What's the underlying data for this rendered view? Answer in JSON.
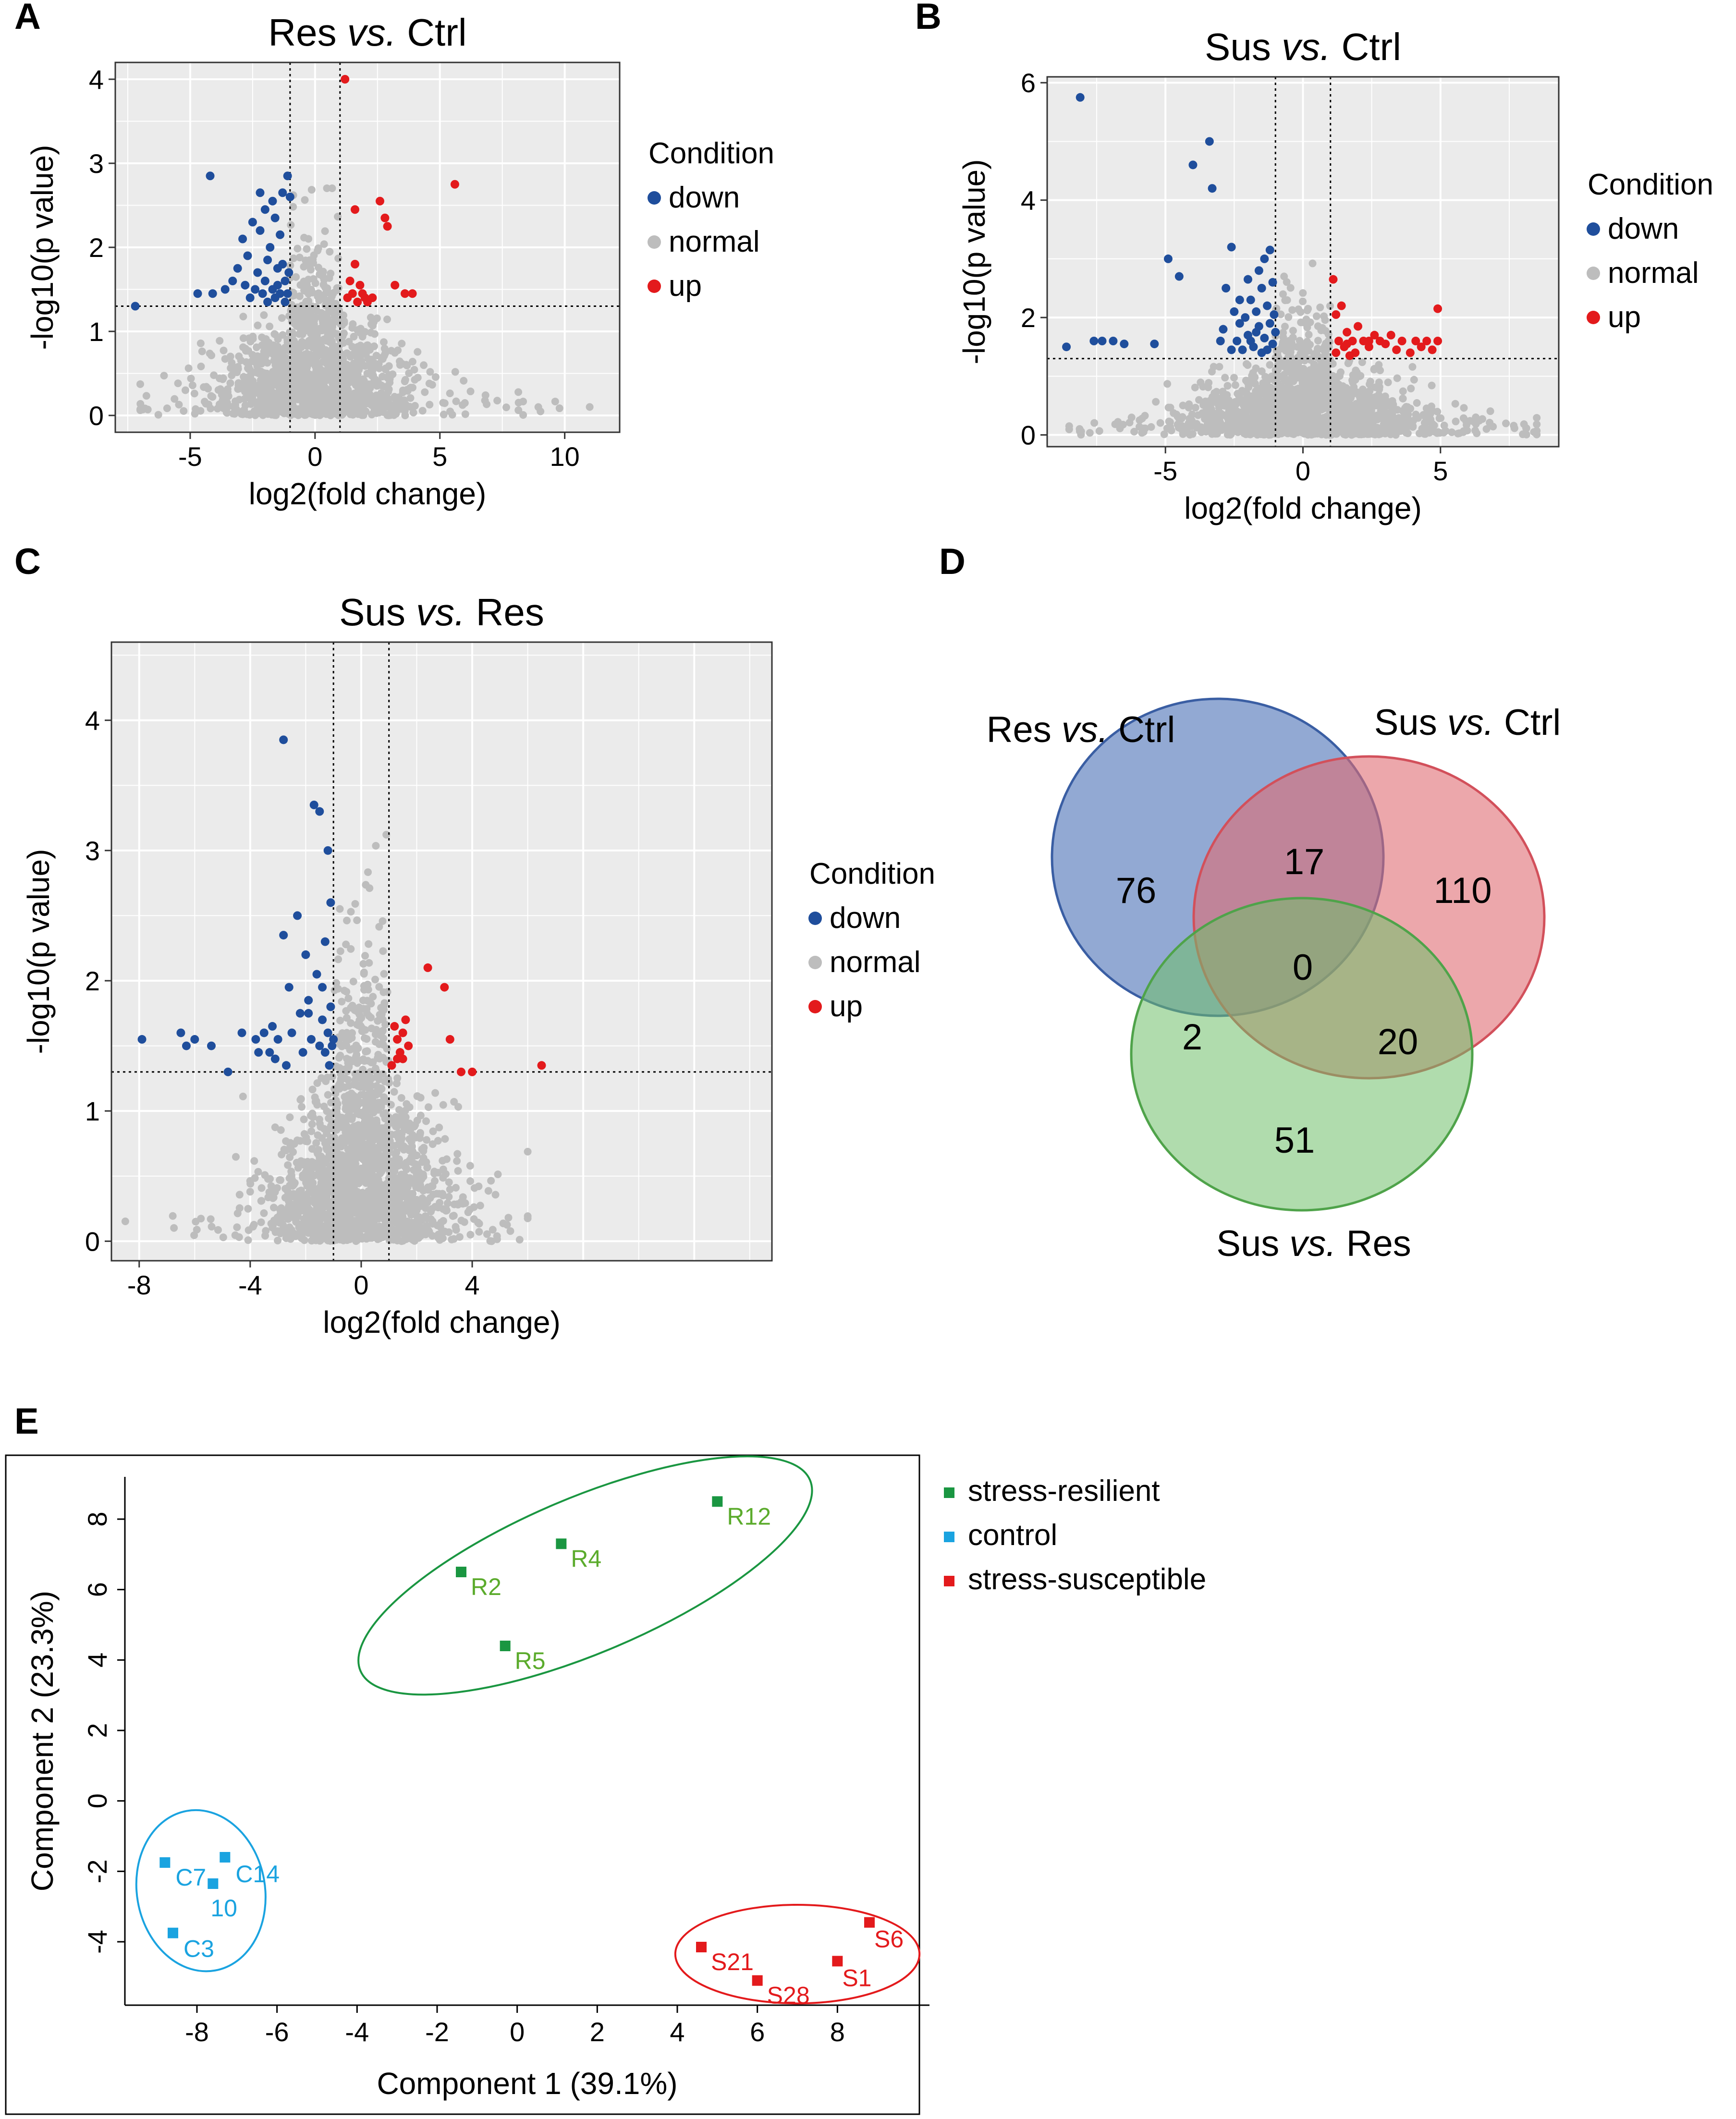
{
  "colors": {
    "down": "#1f4e9c",
    "normal": "#bdbdbd",
    "up": "#e31a1c",
    "panel_bg": "#ebebeb",
    "grid": "#ffffff",
    "venn_a": "#4a6fb5",
    "venn_b": "#e06d73",
    "venn_c": "#6fc06a",
    "resilient": "#1a9641",
    "resilient_label": "#5bab2c",
    "control": "#1aa3e0",
    "susceptible": "#e31a1c"
  },
  "panels": {
    "A": {
      "label": "A"
    },
    "B": {
      "label": "B"
    },
    "C": {
      "label": "C"
    },
    "D": {
      "label": "D"
    },
    "E": {
      "label": "E"
    }
  },
  "legend_condition": {
    "title": "Condition",
    "items": [
      "down",
      "normal",
      "up"
    ]
  },
  "chart_data": [
    {
      "id": "A",
      "type": "scatter",
      "title_pre": "Res ",
      "title_vs": "vs.",
      "title_post": " Ctrl",
      "xlabel": "log2(fold change)",
      "ylabel": "-log10(p value)",
      "xlim": [
        -8,
        12.2
      ],
      "ylim": [
        -0.2,
        4.2
      ],
      "xticks": [
        -5,
        0,
        5,
        10
      ],
      "yticks": [
        0,
        1,
        2,
        3,
        4
      ],
      "vlines": [
        -1,
        1
      ],
      "hline": 1.3,
      "down": [
        [
          -7.2,
          1.3
        ],
        [
          -4.7,
          1.45
        ],
        [
          -4.2,
          2.85
        ],
        [
          -4.1,
          1.45
        ],
        [
          -3.6,
          1.5
        ],
        [
          -3.3,
          1.6
        ],
        [
          -3.1,
          1.75
        ],
        [
          -2.9,
          2.1
        ],
        [
          -2.8,
          1.55
        ],
        [
          -2.7,
          1.9
        ],
        [
          -2.6,
          1.4
        ],
        [
          -2.5,
          2.3
        ],
        [
          -2.4,
          1.5
        ],
        [
          -2.3,
          1.7
        ],
        [
          -2.2,
          2.2
        ],
        [
          -2.2,
          2.65
        ],
        [
          -2.1,
          1.45
        ],
        [
          -2.0,
          1.6
        ],
        [
          -2.0,
          2.45
        ],
        [
          -1.9,
          1.35
        ],
        [
          -1.9,
          1.85
        ],
        [
          -1.8,
          2.0
        ],
        [
          -1.7,
          2.55
        ],
        [
          -1.7,
          1.5
        ],
        [
          -1.6,
          1.4
        ],
        [
          -1.6,
          2.35
        ],
        [
          -1.5,
          1.75
        ],
        [
          -1.5,
          1.55
        ],
        [
          -1.4,
          1.45
        ],
        [
          -1.4,
          2.15
        ],
        [
          -1.3,
          2.65
        ],
        [
          -1.3,
          1.8
        ],
        [
          -1.2,
          1.35
        ],
        [
          -1.2,
          1.6
        ],
        [
          -1.1,
          2.85
        ],
        [
          -1.1,
          1.45
        ],
        [
          -1.05,
          1.7
        ],
        [
          -1.0,
          2.6
        ]
      ],
      "up": [
        [
          1.2,
          4.0
        ],
        [
          1.3,
          1.4
        ],
        [
          1.4,
          1.6
        ],
        [
          1.5,
          1.45
        ],
        [
          1.6,
          2.45
        ],
        [
          1.6,
          1.8
        ],
        [
          1.7,
          1.35
        ],
        [
          1.8,
          1.55
        ],
        [
          1.9,
          1.45
        ],
        [
          2.0,
          1.4
        ],
        [
          2.1,
          1.35
        ],
        [
          2.3,
          1.4
        ],
        [
          2.6,
          2.55
        ],
        [
          2.8,
          2.35
        ],
        [
          2.9,
          2.25
        ],
        [
          3.2,
          1.55
        ],
        [
          3.6,
          1.45
        ],
        [
          3.9,
          1.45
        ],
        [
          5.6,
          2.75
        ]
      ],
      "normal_spec": {
        "seed": 11,
        "n": 1500,
        "xs": 1.6,
        "ymax": 2.9,
        "xmin": -7,
        "xmax": 11
      }
    },
    {
      "id": "B",
      "type": "scatter",
      "title_pre": "Sus ",
      "title_vs": "vs.",
      "title_post": " Ctrl",
      "xlabel": "log2(fold change)",
      "ylabel": "-log10(p value)",
      "xlim": [
        -9.3,
        9.3
      ],
      "ylim": [
        -0.2,
        6.1
      ],
      "xticks": [
        -5,
        0,
        5
      ],
      "yticks": [
        0,
        2,
        4,
        6
      ],
      "vlines": [
        -1,
        1
      ],
      "hline": 1.3,
      "down": [
        [
          -8.1,
          5.75
        ],
        [
          -8.6,
          1.5
        ],
        [
          -7.6,
          1.6
        ],
        [
          -7.3,
          1.6
        ],
        [
          -6.9,
          1.6
        ],
        [
          -6.5,
          1.55
        ],
        [
          -5.4,
          1.55
        ],
        [
          -4.9,
          3.0
        ],
        [
          -4.5,
          2.7
        ],
        [
          -4.0,
          4.6
        ],
        [
          -3.4,
          5.0
        ],
        [
          -3.3,
          4.2
        ],
        [
          -2.9,
          1.8
        ],
        [
          -2.8,
          2.5
        ],
        [
          -2.6,
          3.2
        ],
        [
          -2.5,
          2.1
        ],
        [
          -2.4,
          1.6
        ],
        [
          -2.3,
          2.3
        ],
        [
          -2.2,
          1.45
        ],
        [
          -2.1,
          2.0
        ],
        [
          -2.0,
          2.65
        ],
        [
          -2.0,
          1.7
        ],
        [
          -1.9,
          2.3
        ],
        [
          -1.8,
          1.5
        ],
        [
          -1.7,
          2.1
        ],
        [
          -1.6,
          2.8
        ],
        [
          -1.6,
          1.85
        ],
        [
          -1.5,
          1.4
        ],
        [
          -1.5,
          2.5
        ],
        [
          -1.4,
          3.0
        ],
        [
          -1.4,
          1.65
        ],
        [
          -1.3,
          2.2
        ],
        [
          -1.3,
          1.45
        ],
        [
          -1.2,
          1.9
        ],
        [
          -1.2,
          3.15
        ],
        [
          -1.1,
          2.6
        ],
        [
          -1.1,
          1.55
        ],
        [
          -1.05,
          2.05
        ],
        [
          -1.0,
          1.75
        ],
        [
          -1.9,
          1.6
        ],
        [
          -2.6,
          1.45
        ],
        [
          -3.0,
          1.6
        ],
        [
          -1.7,
          1.75
        ],
        [
          -2.3,
          1.9
        ]
      ],
      "up": [
        [
          1.1,
          2.65
        ],
        [
          1.2,
          1.4
        ],
        [
          1.3,
          1.6
        ],
        [
          1.4,
          2.2
        ],
        [
          1.5,
          1.5
        ],
        [
          1.6,
          1.75
        ],
        [
          1.7,
          1.35
        ],
        [
          1.8,
          1.6
        ],
        [
          1.9,
          1.4
        ],
        [
          2.0,
          1.85
        ],
        [
          2.2,
          1.6
        ],
        [
          2.4,
          1.5
        ],
        [
          2.6,
          1.7
        ],
        [
          2.8,
          1.6
        ],
        [
          3.0,
          1.55
        ],
        [
          3.2,
          1.7
        ],
        [
          3.4,
          1.45
        ],
        [
          3.6,
          1.6
        ],
        [
          3.9,
          1.4
        ],
        [
          4.1,
          1.6
        ],
        [
          4.3,
          1.5
        ],
        [
          4.5,
          1.6
        ],
        [
          4.7,
          1.45
        ],
        [
          4.9,
          2.15
        ],
        [
          4.9,
          1.6
        ],
        [
          1.2,
          2.05
        ],
        [
          1.6,
          1.55
        ],
        [
          2.4,
          1.6
        ]
      ],
      "normal_spec": {
        "seed": 23,
        "n": 1700,
        "xs": 1.8,
        "ymax": 3.0,
        "xmin": -8.5,
        "xmax": 8.5
      }
    },
    {
      "id": "C",
      "type": "scatter",
      "title_pre": "Sus ",
      "title_vs": "vs.",
      "title_post": " Res",
      "xlabel": "log2(fold change)",
      "ylabel": "-log10(p value)",
      "xlim": [
        -9,
        14.8
      ],
      "ylim": [
        -0.15,
        4.6
      ],
      "xticks": [
        -8,
        -4,
        0,
        4
      ],
      "yticks": [
        0,
        1,
        2,
        3,
        4
      ],
      "vlines": [
        -1,
        1
      ],
      "hline": 1.3,
      "down": [
        [
          -7.9,
          1.55
        ],
        [
          -6.5,
          1.6
        ],
        [
          -6.3,
          1.5
        ],
        [
          -6.0,
          1.55
        ],
        [
          -5.4,
          1.5
        ],
        [
          -4.8,
          1.3
        ],
        [
          -4.3,
          1.6
        ],
        [
          -3.8,
          1.55
        ],
        [
          -3.7,
          1.45
        ],
        [
          -3.5,
          1.6
        ],
        [
          -3.3,
          1.45
        ],
        [
          -3.2,
          1.65
        ],
        [
          -3.1,
          1.4
        ],
        [
          -3.0,
          1.55
        ],
        [
          -2.8,
          3.85
        ],
        [
          -2.8,
          2.35
        ],
        [
          -2.7,
          1.35
        ],
        [
          -2.6,
          1.95
        ],
        [
          -2.5,
          1.6
        ],
        [
          -2.3,
          2.5
        ],
        [
          -2.2,
          1.75
        ],
        [
          -2.1,
          1.45
        ],
        [
          -2.0,
          2.2
        ],
        [
          -1.9,
          1.85
        ],
        [
          -1.8,
          1.55
        ],
        [
          -1.7,
          3.35
        ],
        [
          -1.6,
          2.05
        ],
        [
          -1.5,
          3.3
        ],
        [
          -1.5,
          1.5
        ],
        [
          -1.4,
          1.7
        ],
        [
          -1.3,
          2.3
        ],
        [
          -1.3,
          1.45
        ],
        [
          -1.2,
          1.6
        ],
        [
          -1.2,
          3.0
        ],
        [
          -1.1,
          1.8
        ],
        [
          -1.1,
          2.6
        ],
        [
          -1.05,
          1.5
        ],
        [
          -1.0,
          1.55
        ],
        [
          -1.9,
          1.75
        ],
        [
          -1.4,
          1.95
        ],
        [
          -1.15,
          1.35
        ]
      ],
      "up": [
        [
          1.1,
          1.35
        ],
        [
          1.2,
          1.65
        ],
        [
          1.3,
          1.55
        ],
        [
          1.4,
          1.45
        ],
        [
          1.5,
          1.6
        ],
        [
          1.6,
          1.7
        ],
        [
          1.7,
          1.5
        ],
        [
          1.3,
          1.4
        ],
        [
          1.5,
          1.4
        ],
        [
          2.4,
          2.1
        ],
        [
          3.0,
          1.95
        ],
        [
          3.2,
          1.55
        ],
        [
          3.6,
          1.3
        ],
        [
          4.0,
          1.3
        ],
        [
          6.5,
          1.35
        ]
      ],
      "normal_spec": {
        "seed": 37,
        "n": 1900,
        "xs": 1.3,
        "ymax": 4.4,
        "xmin": -8.5,
        "xmax": 6
      }
    },
    {
      "id": "D",
      "type": "venn",
      "sets": [
        {
          "pre": "Res ",
          "vs": "vs.",
          "post": " Ctrl"
        },
        {
          "pre": "Sus ",
          "vs": "vs.",
          "post": " Ctrl"
        },
        {
          "pre": "Sus ",
          "vs": "vs.",
          "post": " Res"
        }
      ],
      "regions": {
        "a_only": "76",
        "ab": "17",
        "b_only": "110",
        "abc": "0",
        "ac": "2",
        "bc": "20",
        "c_only": "51"
      }
    },
    {
      "id": "E",
      "type": "scatter",
      "xlabel": "Component 1 (39.1%)",
      "ylabel": "Component 2 (23.3%)",
      "xlim": [
        -9.8,
        10.3
      ],
      "ylim": [
        -5.8,
        9.2
      ],
      "xticks": [
        -8,
        -6,
        -4,
        -2,
        0,
        2,
        4,
        6,
        8
      ],
      "yticks": [
        -4,
        -2,
        0,
        2,
        4,
        6,
        8
      ],
      "groups": [
        {
          "name": "stress-resilient",
          "key": "resilient",
          "points": [
            {
              "label": "R12",
              "x": 5.0,
              "y": 8.5
            },
            {
              "label": "R4",
              "x": 1.1,
              "y": 7.3
            },
            {
              "label": "R2",
              "x": -1.4,
              "y": 6.5
            },
            {
              "label": "R5",
              "x": -0.3,
              "y": 4.4
            }
          ],
          "ellipse": {
            "cx": 1.7,
            "cy": 6.4,
            "rx": 6.1,
            "ry": 2.2,
            "angle_deg": 23
          }
        },
        {
          "name": "control",
          "key": "control",
          "points": [
            {
              "label": "C7",
              "x": -8.8,
              "y": -1.75
            },
            {
              "label": "C14",
              "x": -7.3,
              "y": -1.6
            },
            {
              "label": "10",
              "x": -7.6,
              "y": -2.35
            },
            {
              "label": "C3",
              "x": -8.6,
              "y": -3.75
            }
          ],
          "ellipse": {
            "cx": -7.9,
            "cy": -2.55,
            "rx": 1.6,
            "ry": 2.3,
            "angle_deg": 10
          }
        },
        {
          "name": "stress-susceptible",
          "key": "susceptible",
          "points": [
            {
              "label": "S6",
              "x": 8.8,
              "y": -3.45
            },
            {
              "label": "S1",
              "x": 8.0,
              "y": -4.55
            },
            {
              "label": "S21",
              "x": 4.6,
              "y": -4.15
            },
            {
              "label": "S28",
              "x": 6.0,
              "y": -5.1
            }
          ],
          "ellipse": {
            "cx": 7.0,
            "cy": -4.35,
            "rx": 3.05,
            "ry": 1.4,
            "angle_deg": 0
          }
        }
      ]
    }
  ]
}
